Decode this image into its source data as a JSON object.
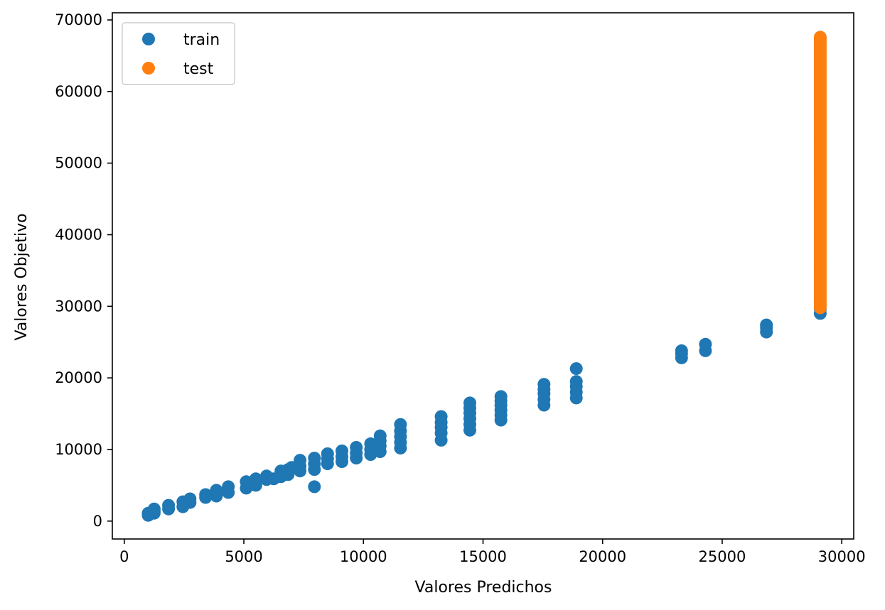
{
  "chart_data": {
    "type": "scatter",
    "title": "",
    "xlabel": "Valores Predichos",
    "ylabel": "Valores Objetivo",
    "xlim": [
      -500,
      30500
    ],
    "ylim": [
      -2500,
      71000
    ],
    "xticks": [
      0,
      5000,
      10000,
      15000,
      20000,
      25000,
      30000
    ],
    "yticks": [
      0,
      10000,
      20000,
      30000,
      40000,
      50000,
      60000,
      70000
    ],
    "grid": false,
    "legend": "upper-left",
    "series": [
      {
        "name": "train",
        "color": "#1f77b4",
        "points": [
          [
            1000,
            800
          ],
          [
            1000,
            1100
          ],
          [
            1250,
            1100
          ],
          [
            1250,
            1400
          ],
          [
            1250,
            1700
          ],
          [
            1850,
            1700
          ],
          [
            1850,
            2200
          ],
          [
            2450,
            2000
          ],
          [
            2450,
            2700
          ],
          [
            2750,
            2600
          ],
          [
            2750,
            3100
          ],
          [
            3400,
            3300
          ],
          [
            3400,
            3700
          ],
          [
            3850,
            3500
          ],
          [
            3850,
            4300
          ],
          [
            4350,
            4000
          ],
          [
            4350,
            4800
          ],
          [
            5100,
            4600
          ],
          [
            5100,
            5500
          ],
          [
            5500,
            5000
          ],
          [
            5500,
            5900
          ],
          [
            5950,
            5800
          ],
          [
            5950,
            6300
          ],
          [
            6250,
            5900
          ],
          [
            6550,
            6200
          ],
          [
            6550,
            7000
          ],
          [
            6850,
            6500
          ],
          [
            6850,
            7200
          ],
          [
            7000,
            7500
          ],
          [
            7350,
            7000
          ],
          [
            7350,
            7700
          ],
          [
            7350,
            8500
          ],
          [
            7950,
            4800
          ],
          [
            7950,
            7200
          ],
          [
            7950,
            8000
          ],
          [
            7950,
            8800
          ],
          [
            8500,
            8000
          ],
          [
            8500,
            8700
          ],
          [
            8500,
            9400
          ],
          [
            9100,
            8300
          ],
          [
            9100,
            9000
          ],
          [
            9100,
            9800
          ],
          [
            9700,
            8800
          ],
          [
            9700,
            9500
          ],
          [
            9700,
            10300
          ],
          [
            10300,
            9300
          ],
          [
            10300,
            10000
          ],
          [
            10300,
            10800
          ],
          [
            10700,
            9700
          ],
          [
            10700,
            10500
          ],
          [
            10700,
            11200
          ],
          [
            10700,
            11900
          ],
          [
            11550,
            10200
          ],
          [
            11550,
            11000
          ],
          [
            11550,
            11800
          ],
          [
            11550,
            12600
          ],
          [
            11550,
            13500
          ],
          [
            13250,
            11300
          ],
          [
            13250,
            12300
          ],
          [
            13250,
            13100
          ],
          [
            13250,
            13800
          ],
          [
            13250,
            14600
          ],
          [
            14450,
            12700
          ],
          [
            14450,
            13500
          ],
          [
            14450,
            14300
          ],
          [
            14450,
            15100
          ],
          [
            14450,
            15800
          ],
          [
            14450,
            16500
          ],
          [
            15750,
            14100
          ],
          [
            15750,
            14800
          ],
          [
            15750,
            15500
          ],
          [
            15750,
            16200
          ],
          [
            15750,
            16800
          ],
          [
            15750,
            17400
          ],
          [
            17550,
            16200
          ],
          [
            17550,
            17000
          ],
          [
            17550,
            17800
          ],
          [
            17550,
            18400
          ],
          [
            17550,
            19100
          ],
          [
            18900,
            17200
          ],
          [
            18900,
            18000
          ],
          [
            18900,
            18800
          ],
          [
            18900,
            19500
          ],
          [
            18900,
            21300
          ],
          [
            23300,
            22800
          ],
          [
            23300,
            23400
          ],
          [
            23300,
            23800
          ],
          [
            24300,
            23800
          ],
          [
            24300,
            24700
          ],
          [
            26850,
            26400
          ],
          [
            26850,
            27000
          ],
          [
            26850,
            27400
          ],
          [
            29100,
            29000
          ],
          [
            29100,
            29600
          ]
        ]
      },
      {
        "name": "test",
        "color": "#ff7f0e",
        "x": 29100,
        "y_range": [
          29800,
          67600
        ]
      }
    ]
  }
}
